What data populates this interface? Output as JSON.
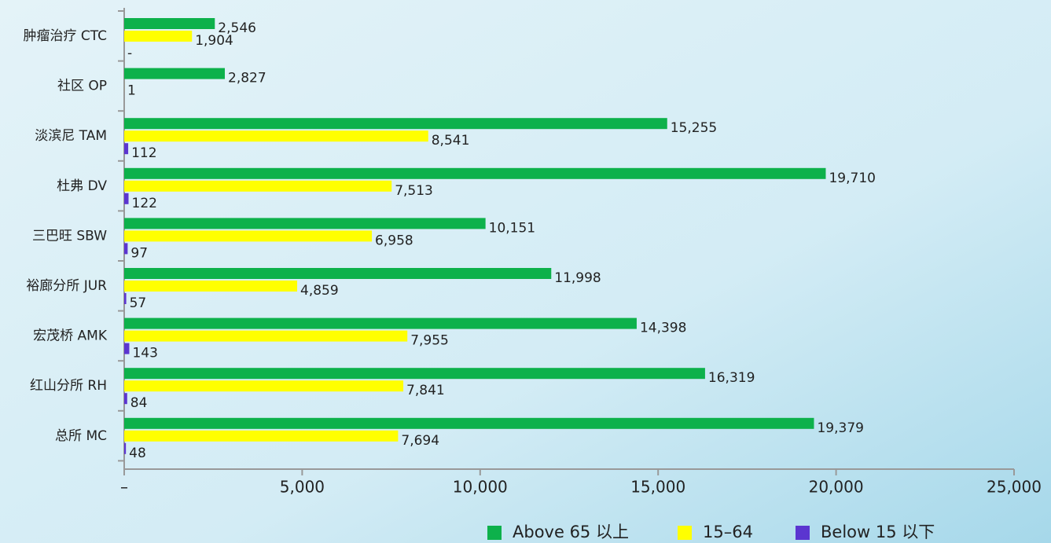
{
  "chart_data": {
    "type": "hbar",
    "categories": [
      "肿瘤治疗 CTC",
      "社区 OP",
      "淡滨尼 TAM",
      "杜弗 DV",
      "三巴旺 SBW",
      "裕廊分所 JUR",
      "宏茂桥 AMK",
      "红山分所 RH",
      "总所 MC"
    ],
    "series": [
      {
        "name": "Above 65 以上",
        "color": "#0db14b",
        "values": [
          2546,
          2827,
          15255,
          19710,
          10151,
          11998,
          14398,
          16319,
          19379
        ],
        "value_labels": [
          "2,546",
          "2,827",
          "15,255",
          "19,710",
          "10,151",
          "11,998",
          "14,398",
          "16,319",
          "19,379"
        ]
      },
      {
        "name": "15–64",
        "color": "#ffff00",
        "values": [
          1904,
          1,
          8541,
          7513,
          6958,
          4859,
          7955,
          7841,
          7694
        ],
        "value_labels": [
          "1,904",
          "1",
          "8,541",
          "7,513",
          "6,958",
          "4,859",
          "7,955",
          "7,841",
          "7,694"
        ]
      },
      {
        "name": "Below 15 以下",
        "color": "#5b35d0",
        "values": [
          0,
          null,
          112,
          122,
          97,
          57,
          143,
          84,
          48
        ],
        "value_labels": [
          "-",
          null,
          "112",
          "122",
          "97",
          "57",
          "143",
          "84",
          "48"
        ]
      }
    ],
    "xlim": [
      0,
      25000
    ],
    "xticks": [
      {
        "value": 0,
        "label": "–"
      },
      {
        "value": 5000,
        "label": "5,000"
      },
      {
        "value": 10000,
        "label": "10,000"
      },
      {
        "value": 15000,
        "label": "15,000"
      },
      {
        "value": 20000,
        "label": "20,000"
      },
      {
        "value": 25000,
        "label": "25,000"
      }
    ],
    "legend": "bottom-right"
  }
}
